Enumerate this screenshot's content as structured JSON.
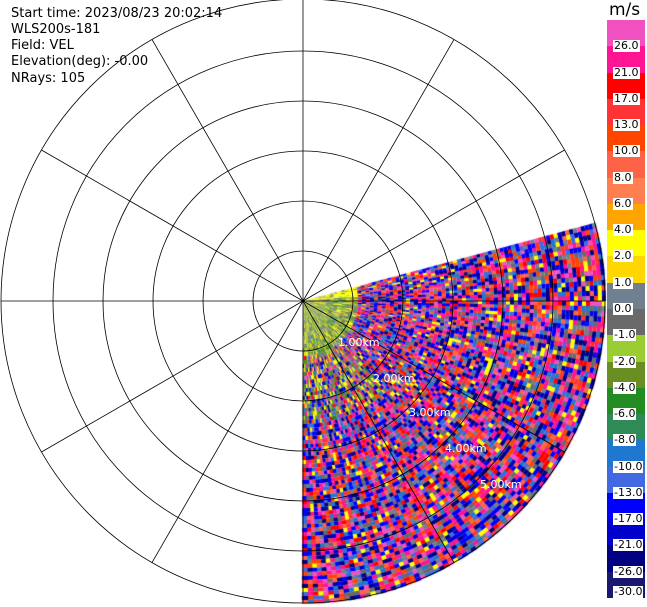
{
  "header": {
    "start_time": "Start time: 2023/08/23 20:02:14",
    "instrument": "WLS200s-181",
    "field": "Field: VEL",
    "elevation": "Elevation(deg): -0.00",
    "nrays": "NRays: 105"
  },
  "chart_data": {
    "type": "heatmap",
    "projection": "polar PPI",
    "field": "VEL",
    "nrays": 105,
    "azimuth_span_deg": 105,
    "range_labels": [
      "1.00km",
      "2.00km",
      "3.00km",
      "4.00km",
      "5.00km"
    ],
    "grid": true,
    "colorbar": {
      "unit": "m/s",
      "ticks": [
        "26.0",
        "21.0",
        "17.0",
        "13.0",
        "10.0",
        "8.0",
        "6.0",
        "4.0",
        "2.0",
        "1.0",
        "0.0",
        "-1.0",
        "-2.0",
        "-4.0",
        "-6.0",
        "-8.0",
        "-10.0",
        "-13.0",
        "-17.0",
        "-21.0",
        "-26.0",
        "-30.0"
      ],
      "colors": [
        "#f050c0",
        "#ff1493",
        "#ff0000",
        "#ff3333",
        "#ff4500",
        "#ff6347",
        "#ff7f50",
        "#ffa500",
        "#ffff00",
        "#ffd700",
        "#708090",
        "#696969",
        "#9acd32",
        "#6b8e23",
        "#228b22",
        "#2e8b57",
        "#1e78d0",
        "#4169e1",
        "#0000ff",
        "#0000cd",
        "#000080",
        "#191970"
      ]
    }
  }
}
